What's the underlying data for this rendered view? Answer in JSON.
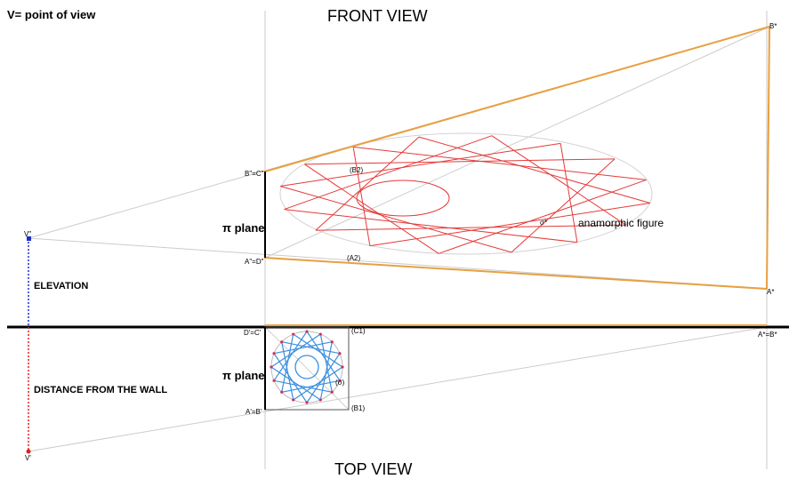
{
  "legend_text": "V= point of view",
  "front_view_title": "FRONT VIEW",
  "top_view_title": "TOP VIEW",
  "elevation_label": "ELEVATION",
  "distance_label": "DISTANCE FROM THE WALL",
  "plane_symbol": "π",
  "plane_word": "plane",
  "anamorphic_label": "anamorphic figure",
  "points": {
    "v_front": "V\"",
    "v_top": "V'",
    "b_front": "B\"=C\"",
    "a_front": "A\"=D\"",
    "b_star": "B*",
    "a_star": "A*",
    "b2": "(B2)",
    "a2": "(A2)",
    "sigma_star": "σ*",
    "d_top": "D'=C'",
    "c1": "(C1)",
    "a_top": "A'=B'",
    "b1": "(B1)",
    "sigma": "(σ)",
    "ab_star_top": "A*=B*"
  },
  "colors": {
    "ground_line": "#000000",
    "construction": "#c8c8c8",
    "trapezoid": "#e8a040",
    "anamorphic_star": "#e53a3a",
    "original_star": "#3a8fe0",
    "star_vertex": "#d03060",
    "elevation_marker": "#1a2fd0",
    "distance_marker": "#e02020"
  },
  "star": {
    "vertex_count": 16,
    "step": 5
  }
}
